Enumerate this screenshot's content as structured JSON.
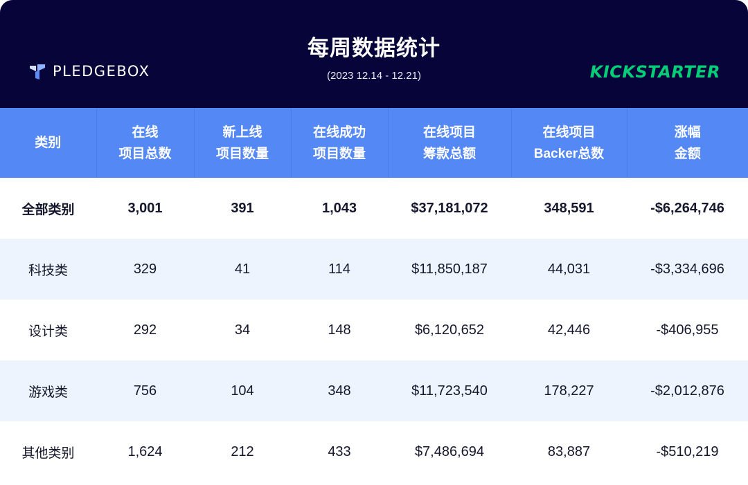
{
  "header": {
    "title": "每周数据统计",
    "subtitle": "(2023 12.14 - 12.21)",
    "left_brand": "PLEDGEBOX",
    "left_brand_icon": "pledgebox-logo-icon",
    "right_brand": "KICKSTARTER",
    "colors": {
      "background": "#060438",
      "kickstarter_green": "#05ce78",
      "table_header": "#5488f5",
      "alt_row": "#eef4fe"
    }
  },
  "table": {
    "columns": [
      [
        "类别"
      ],
      [
        "在线",
        "项目总数"
      ],
      [
        "新上线",
        "项目数量"
      ],
      [
        "在线成功",
        "项目数量"
      ],
      [
        "在线项目",
        "筹款总额"
      ],
      [
        "在线项目",
        "Backer总数"
      ],
      [
        "涨幅",
        "金额"
      ]
    ],
    "rows": [
      [
        "全部类别",
        "3,001",
        "391",
        "1,043",
        "$37,181,072",
        "348,591",
        "-$6,264,746"
      ],
      [
        "科技类",
        "329",
        "41",
        "114",
        "$11,850,187",
        "44,031",
        "-$3,334,696"
      ],
      [
        "设计类",
        "292",
        "34",
        "148",
        "$6,120,652",
        "42,446",
        "-$406,955"
      ],
      [
        "游戏类",
        "756",
        "104",
        "348",
        "$11,723,540",
        "178,227",
        "-$2,012,876"
      ],
      [
        "其他类别",
        "1,624",
        "212",
        "433",
        "$7,486,694",
        "83,887",
        "-$510,219"
      ]
    ]
  }
}
